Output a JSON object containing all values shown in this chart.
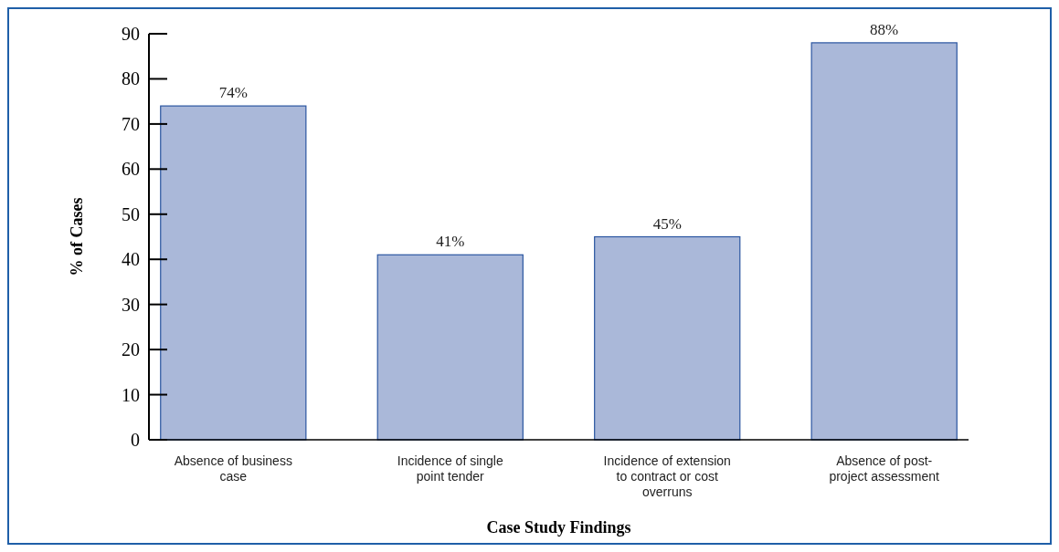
{
  "chart_data": {
    "type": "bar",
    "xlabel": "Case Study Findings",
    "ylabel": "% of Cases",
    "categories": [
      "Absence of business case",
      "Incidence of single point tender",
      "Incidence of extension to contract or cost overruns",
      "Absence of post-project assessment"
    ],
    "values": [
      74,
      41,
      45,
      88
    ],
    "color": "#aab8d9",
    "value_labels": [
      "74%",
      "41%",
      "45%",
      "88%"
    ],
    "ylim": [
      0,
      90
    ],
    "yticks": [
      0,
      10,
      20,
      30,
      40,
      50,
      60,
      70,
      80,
      90
    ]
  }
}
